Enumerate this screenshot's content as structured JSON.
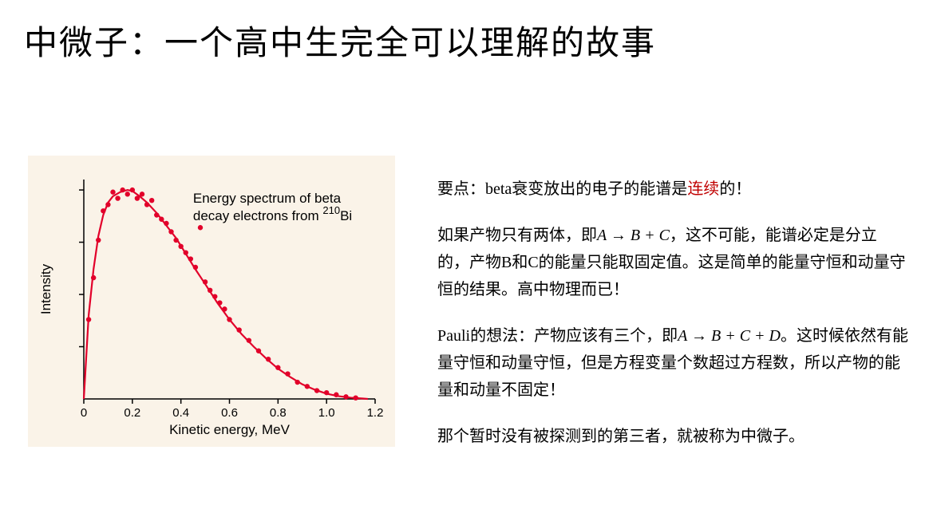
{
  "title": "中微子：一个高中生完全可以理解的故事",
  "chart": {
    "type": "scatter+line",
    "background_color": "#faf3e8",
    "axis_color": "#000000",
    "data_color": "#e2002a",
    "xlabel": "Kinetic energy, MeV",
    "ylabel": "Intensity",
    "annotation_line1": "Energy spectrum of beta",
    "annotation_line2_a": "decay electrons from ",
    "annotation_line2_sup": "210",
    "annotation_line2_b": "Bi",
    "x_ticks": [
      "0",
      "0.2",
      "0.4",
      "0.6",
      "0.8",
      "1.0",
      "1.2"
    ],
    "xlim": [
      0,
      1.2
    ],
    "ylim": [
      0,
      1.05
    ],
    "curve": [
      [
        0.0,
        0.0
      ],
      [
        0.02,
        0.4
      ],
      [
        0.04,
        0.62
      ],
      [
        0.06,
        0.78
      ],
      [
        0.08,
        0.88
      ],
      [
        0.1,
        0.94
      ],
      [
        0.12,
        0.97
      ],
      [
        0.15,
        0.99
      ],
      [
        0.18,
        1.0
      ],
      [
        0.2,
        0.995
      ],
      [
        0.23,
        0.97
      ],
      [
        0.26,
        0.94
      ],
      [
        0.3,
        0.89
      ],
      [
        0.34,
        0.83
      ],
      [
        0.38,
        0.77
      ],
      [
        0.42,
        0.695
      ],
      [
        0.46,
        0.62
      ],
      [
        0.5,
        0.55
      ],
      [
        0.55,
        0.46
      ],
      [
        0.6,
        0.38
      ],
      [
        0.65,
        0.31
      ],
      [
        0.7,
        0.25
      ],
      [
        0.75,
        0.195
      ],
      [
        0.8,
        0.145
      ],
      [
        0.85,
        0.105
      ],
      [
        0.9,
        0.07
      ],
      [
        0.95,
        0.045
      ],
      [
        1.0,
        0.025
      ],
      [
        1.05,
        0.013
      ],
      [
        1.1,
        0.006
      ],
      [
        1.15,
        0.002
      ],
      [
        1.17,
        0.0
      ]
    ],
    "points": [
      [
        0.02,
        0.38
      ],
      [
        0.04,
        0.58
      ],
      [
        0.06,
        0.76
      ],
      [
        0.08,
        0.9
      ],
      [
        0.1,
        0.93
      ],
      [
        0.12,
        0.99
      ],
      [
        0.14,
        0.96
      ],
      [
        0.16,
        1.0
      ],
      [
        0.18,
        0.98
      ],
      [
        0.2,
        1.0
      ],
      [
        0.22,
        0.96
      ],
      [
        0.24,
        0.98
      ],
      [
        0.26,
        0.93
      ],
      [
        0.28,
        0.95
      ],
      [
        0.3,
        0.88
      ],
      [
        0.32,
        0.86
      ],
      [
        0.34,
        0.84
      ],
      [
        0.36,
        0.8
      ],
      [
        0.38,
        0.76
      ],
      [
        0.4,
        0.73
      ],
      [
        0.42,
        0.7
      ],
      [
        0.44,
        0.67
      ],
      [
        0.46,
        0.63
      ],
      [
        0.48,
        0.82
      ],
      [
        0.5,
        0.56
      ],
      [
        0.52,
        0.52
      ],
      [
        0.54,
        0.49
      ],
      [
        0.56,
        0.46
      ],
      [
        0.58,
        0.43
      ],
      [
        0.6,
        0.38
      ],
      [
        0.64,
        0.33
      ],
      [
        0.68,
        0.28
      ],
      [
        0.72,
        0.23
      ],
      [
        0.76,
        0.19
      ],
      [
        0.8,
        0.15
      ],
      [
        0.84,
        0.12
      ],
      [
        0.88,
        0.08
      ],
      [
        0.92,
        0.06
      ],
      [
        0.96,
        0.04
      ],
      [
        1.0,
        0.03
      ],
      [
        1.04,
        0.02
      ],
      [
        1.08,
        0.01
      ],
      [
        1.12,
        0.005
      ]
    ],
    "label_fontsize": 17,
    "tick_fontsize": 15,
    "marker_radius": 3.2,
    "line_width": 2.2
  },
  "para1_a": "要点：beta衰变放出的电子的能谱是",
  "para1_red": "连续",
  "para1_b": "的！",
  "para2_a": "如果产物只有两体，即",
  "para2_math": "A → B + C",
  "para2_b": "，这不可能，能谱必定是分立的，产物B和C的能量只能取固定值。这是简单的能量守恒和动量守恒的结果。高中物理而已！",
  "para3_a": "Pauli的想法：产物应该有三个，即",
  "para3_math": "A → B + C + D",
  "para3_b": "。这时候依然有能量守恒和动量守恒，但是方程变量个数超过方程数，所以产物的能量和动量不固定！",
  "para4": "那个暂时没有被探测到的第三者，就被称为中微子。"
}
